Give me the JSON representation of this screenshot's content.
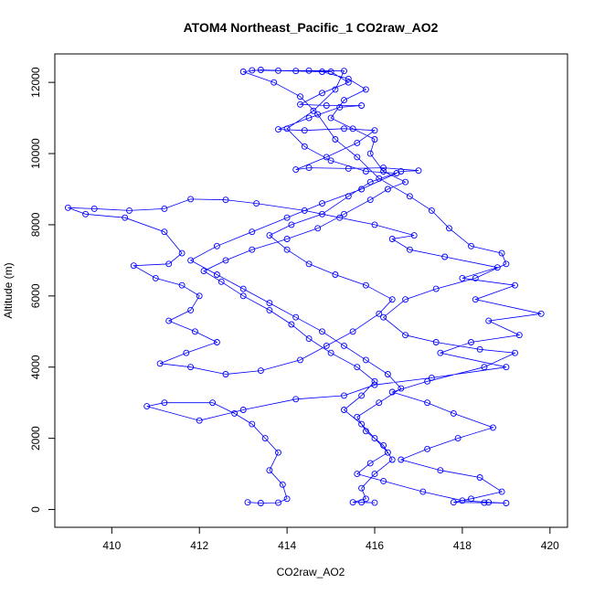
{
  "chart_data": {
    "type": "scatter",
    "title": "ATOM4 Northeast_Pacific_1 CO2raw_AO2",
    "xlabel": "CO2raw_AO2",
    "ylabel": "Altitude (m)",
    "xlim": [
      408.7,
      420.4
    ],
    "ylim": [
      -500,
      12800
    ],
    "x_ticks": [
      410,
      412,
      414,
      416,
      418,
      420
    ],
    "y_ticks": [
      0,
      2000,
      4000,
      6000,
      8000,
      10000,
      12000
    ],
    "grid": false,
    "legend": "none",
    "marker": "open-circle",
    "connected": true,
    "color": "#0000ff",
    "series": [
      {
        "values": [
          [
            413.1,
            200
          ],
          [
            413.4,
            180
          ],
          [
            413.8,
            190
          ],
          [
            414.0,
            300
          ],
          [
            413.9,
            700
          ],
          [
            413.6,
            1100
          ],
          [
            413.8,
            1600
          ],
          [
            413.5,
            2000
          ],
          [
            413.2,
            2400
          ],
          [
            412.8,
            2700
          ],
          [
            412.3,
            3000
          ],
          [
            411.2,
            3000
          ],
          [
            410.8,
            2900
          ],
          [
            412.0,
            2500
          ],
          [
            413.0,
            2800
          ],
          [
            414.2,
            3100
          ],
          [
            415.3,
            3200
          ],
          [
            416.0,
            3500
          ],
          [
            417.3,
            3700
          ],
          [
            419.0,
            4000
          ],
          [
            417.5,
            4400
          ],
          [
            418.2,
            4700
          ],
          [
            419.3,
            4900
          ],
          [
            418.6,
            5300
          ],
          [
            419.8,
            5500
          ],
          [
            418.3,
            5900
          ],
          [
            419.2,
            6300
          ],
          [
            418.0,
            6500
          ],
          [
            418.8,
            6800
          ],
          [
            417.6,
            7100
          ],
          [
            416.8,
            7300
          ],
          [
            416.4,
            7600
          ],
          [
            416.9,
            7700
          ],
          [
            416.0,
            8000
          ],
          [
            415.2,
            8200
          ],
          [
            414.4,
            8400
          ],
          [
            413.3,
            8600
          ],
          [
            412.6,
            8700
          ],
          [
            411.8,
            8720
          ],
          [
            411.2,
            8450
          ],
          [
            410.4,
            8400
          ],
          [
            409.6,
            8450
          ],
          [
            409.0,
            8480
          ],
          [
            409.4,
            8300
          ],
          [
            410.3,
            8200
          ],
          [
            411.2,
            7800
          ],
          [
            411.6,
            7200
          ],
          [
            411.3,
            6900
          ],
          [
            410.5,
            6850
          ],
          [
            411.0,
            6500
          ],
          [
            411.6,
            6300
          ],
          [
            412.0,
            6000
          ],
          [
            411.8,
            5600
          ],
          [
            411.3,
            5300
          ],
          [
            411.9,
            5000
          ],
          [
            412.4,
            4700
          ],
          [
            411.7,
            4400
          ],
          [
            411.1,
            4100
          ],
          [
            411.8,
            4000
          ],
          [
            412.6,
            3800
          ],
          [
            413.4,
            3900
          ],
          [
            414.3,
            4200
          ],
          [
            414.9,
            4600
          ],
          [
            415.5,
            5000
          ],
          [
            416.1,
            5500
          ],
          [
            416.4,
            5900
          ],
          [
            415.8,
            6300
          ],
          [
            415.1,
            6600
          ],
          [
            414.5,
            6900
          ],
          [
            414.0,
            7300
          ],
          [
            413.6,
            7700
          ],
          [
            414.1,
            8000
          ],
          [
            414.8,
            8300
          ],
          [
            415.4,
            8800
          ],
          [
            415.9,
            9200
          ],
          [
            416.6,
            9500
          ],
          [
            417.0,
            9520
          ],
          [
            416.2,
            9600
          ],
          [
            415.4,
            9580
          ],
          [
            414.5,
            9600
          ],
          [
            414.2,
            9550
          ],
          [
            414.9,
            9900
          ],
          [
            415.6,
            10300
          ],
          [
            416.0,
            10650
          ],
          [
            415.3,
            10700
          ],
          [
            414.4,
            10650
          ],
          [
            413.8,
            10680
          ],
          [
            414.5,
            11000
          ],
          [
            415.2,
            11300
          ],
          [
            415.7,
            11350
          ],
          [
            414.9,
            11350
          ],
          [
            414.3,
            11380
          ],
          [
            414.8,
            11700
          ],
          [
            415.4,
            12000
          ],
          [
            415.0,
            12300
          ],
          [
            414.2,
            12320
          ],
          [
            413.4,
            12350
          ],
          [
            413.0,
            12300
          ],
          [
            413.7,
            12000
          ],
          [
            414.3,
            11600
          ],
          [
            414.7,
            11100
          ],
          [
            415.1,
            10400
          ],
          [
            415.6,
            9900
          ],
          [
            416.1,
            9300
          ],
          [
            416.8,
            8800
          ],
          [
            417.3,
            8400
          ],
          [
            417.7,
            7900
          ],
          [
            418.2,
            7400
          ],
          [
            418.9,
            7200
          ],
          [
            419.0,
            6900
          ],
          [
            418.3,
            6500
          ],
          [
            417.4,
            6200
          ],
          [
            416.7,
            5900
          ],
          [
            416.2,
            5400
          ],
          [
            416.7,
            4900
          ],
          [
            417.4,
            4700
          ],
          [
            418.4,
            4500
          ],
          [
            419.2,
            4400
          ],
          [
            418.5,
            4000
          ],
          [
            417.2,
            3600
          ],
          [
            416.4,
            3300
          ],
          [
            417.2,
            3000
          ],
          [
            417.8,
            2700
          ],
          [
            418.7,
            2300
          ],
          [
            417.9,
            2000
          ],
          [
            417.2,
            1700
          ],
          [
            416.6,
            1400
          ],
          [
            417.5,
            1100
          ],
          [
            418.4,
            900
          ],
          [
            418.9,
            500
          ],
          [
            418.2,
            300
          ],
          [
            417.8,
            200
          ],
          [
            418.5,
            190
          ],
          [
            419.0,
            180
          ],
          [
            418.6,
            200
          ],
          [
            418.0,
            250
          ],
          [
            417.1,
            500
          ],
          [
            416.2,
            800
          ],
          [
            415.6,
            1000
          ],
          [
            415.9,
            1300
          ],
          [
            416.3,
            1600
          ],
          [
            416.0,
            2000
          ],
          [
            415.7,
            2400
          ],
          [
            415.3,
            2800
          ],
          [
            415.7,
            3200
          ],
          [
            416.0,
            3600
          ],
          [
            415.6,
            4000
          ],
          [
            415.0,
            4400
          ],
          [
            414.5,
            4800
          ],
          [
            414.1,
            5200
          ],
          [
            413.6,
            5600
          ],
          [
            413.0,
            6000
          ],
          [
            412.5,
            6400
          ],
          [
            412.1,
            6700
          ],
          [
            412.6,
            7000
          ],
          [
            413.2,
            7300
          ],
          [
            414.0,
            7600
          ],
          [
            414.7,
            7900
          ],
          [
            415.3,
            8300
          ],
          [
            415.9,
            8700
          ],
          [
            416.3,
            9000
          ],
          [
            416.7,
            9200
          ],
          [
            416.2,
            9500
          ],
          [
            415.9,
            10000
          ],
          [
            416.0,
            10400
          ],
          [
            415.5,
            10700
          ],
          [
            415.0,
            11000
          ],
          [
            415.3,
            11500
          ],
          [
            415.8,
            11800
          ],
          [
            415.4,
            12100
          ],
          [
            414.8,
            12300
          ],
          [
            413.8,
            12330
          ],
          [
            413.2,
            12340
          ],
          [
            414.5,
            12330
          ],
          [
            415.3,
            12320
          ],
          [
            415.1,
            11800
          ],
          [
            414.6,
            11200
          ],
          [
            414.0,
            10700
          ],
          [
            414.4,
            10200
          ],
          [
            415.0,
            9800
          ],
          [
            415.8,
            9500
          ],
          [
            416.5,
            9450
          ],
          [
            415.7,
            9000
          ],
          [
            414.8,
            8600
          ],
          [
            414.0,
            8200
          ],
          [
            413.2,
            7800
          ],
          [
            412.4,
            7400
          ],
          [
            411.8,
            7000
          ],
          [
            412.4,
            6600
          ],
          [
            413.0,
            6200
          ],
          [
            413.6,
            5800
          ],
          [
            414.2,
            5400
          ],
          [
            414.8,
            5000
          ],
          [
            415.3,
            4600
          ],
          [
            415.8,
            4200
          ],
          [
            416.3,
            3800
          ],
          [
            416.6,
            3400
          ],
          [
            416.1,
            3000
          ],
          [
            415.6,
            2600
          ],
          [
            415.8,
            2200
          ],
          [
            416.2,
            1800
          ],
          [
            416.4,
            1400
          ],
          [
            416.0,
            1000
          ],
          [
            415.7,
            600
          ],
          [
            415.8,
            300
          ],
          [
            415.5,
            200
          ],
          [
            416.0,
            190
          ],
          [
            415.7,
            200
          ]
        ]
      }
    ]
  }
}
